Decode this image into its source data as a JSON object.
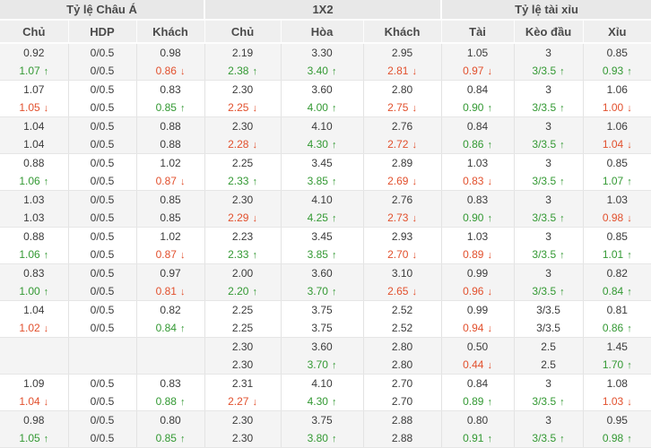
{
  "sections": [
    {
      "label": "Tỷ lệ Châu Á",
      "columns": [
        "Chủ",
        "HDP",
        "Khách"
      ]
    },
    {
      "label": "1X2",
      "columns": [
        "Chủ",
        "Hòa",
        "Khách"
      ]
    },
    {
      "label": "Tỷ lệ tài xỉu",
      "columns": [
        "Tài",
        "Kèo đầu",
        "Xỉu"
      ]
    }
  ],
  "colors": {
    "up": "#339933",
    "down": "#e2502d"
  },
  "trend_icons": {
    "up": "↑",
    "down": "↓"
  },
  "rows": [
    {
      "cells": [
        {
          "t": "0.92",
          "b": "1.07",
          "d": "up"
        },
        {
          "t": "0/0.5",
          "b": "0/0.5"
        },
        {
          "t": "0.98",
          "b": "0.86",
          "d": "down"
        },
        {
          "t": "2.19",
          "b": "2.38",
          "d": "up"
        },
        {
          "t": "3.30",
          "b": "3.40",
          "d": "up"
        },
        {
          "t": "2.95",
          "b": "2.81",
          "d": "down"
        },
        {
          "t": "1.05",
          "b": "0.97",
          "d": "down"
        },
        {
          "t": "3",
          "b": "3/3.5",
          "d": "up"
        },
        {
          "t": "0.85",
          "b": "0.93",
          "d": "up"
        }
      ]
    },
    {
      "cells": [
        {
          "t": "1.07",
          "b": "1.05",
          "d": "down"
        },
        {
          "t": "0/0.5",
          "b": "0/0.5"
        },
        {
          "t": "0.83",
          "b": "0.85",
          "d": "up"
        },
        {
          "t": "2.30",
          "b": "2.25",
          "d": "down"
        },
        {
          "t": "3.60",
          "b": "4.00",
          "d": "up"
        },
        {
          "t": "2.80",
          "b": "2.75",
          "d": "down"
        },
        {
          "t": "0.84",
          "b": "0.90",
          "d": "up"
        },
        {
          "t": "3",
          "b": "3/3.5",
          "d": "up"
        },
        {
          "t": "1.06",
          "b": "1.00",
          "d": "down"
        }
      ]
    },
    {
      "cells": [
        {
          "t": "1.04",
          "b": "1.04"
        },
        {
          "t": "0/0.5",
          "b": "0/0.5"
        },
        {
          "t": "0.88",
          "b": "0.88"
        },
        {
          "t": "2.30",
          "b": "2.28",
          "d": "down"
        },
        {
          "t": "4.10",
          "b": "4.30",
          "d": "up"
        },
        {
          "t": "2.76",
          "b": "2.72",
          "d": "down"
        },
        {
          "t": "0.84",
          "b": "0.86",
          "d": "up"
        },
        {
          "t": "3",
          "b": "3/3.5",
          "d": "up"
        },
        {
          "t": "1.06",
          "b": "1.04",
          "d": "down"
        }
      ]
    },
    {
      "cells": [
        {
          "t": "0.88",
          "b": "1.06",
          "d": "up"
        },
        {
          "t": "0/0.5",
          "b": "0/0.5"
        },
        {
          "t": "1.02",
          "b": "0.87",
          "d": "down"
        },
        {
          "t": "2.25",
          "b": "2.33",
          "d": "up"
        },
        {
          "t": "3.45",
          "b": "3.85",
          "d": "up"
        },
        {
          "t": "2.89",
          "b": "2.69",
          "d": "down"
        },
        {
          "t": "1.03",
          "b": "0.83",
          "d": "down"
        },
        {
          "t": "3",
          "b": "3/3.5",
          "d": "up"
        },
        {
          "t": "0.85",
          "b": "1.07",
          "d": "up"
        }
      ]
    },
    {
      "cells": [
        {
          "t": "1.03",
          "b": "1.03"
        },
        {
          "t": "0/0.5",
          "b": "0/0.5"
        },
        {
          "t": "0.85",
          "b": "0.85"
        },
        {
          "t": "2.30",
          "b": "2.29",
          "d": "down"
        },
        {
          "t": "4.10",
          "b": "4.25",
          "d": "up"
        },
        {
          "t": "2.76",
          "b": "2.73",
          "d": "down"
        },
        {
          "t": "0.83",
          "b": "0.90",
          "d": "up"
        },
        {
          "t": "3",
          "b": "3/3.5",
          "d": "up"
        },
        {
          "t": "1.03",
          "b": "0.98",
          "d": "down"
        }
      ]
    },
    {
      "cells": [
        {
          "t": "0.88",
          "b": "1.06",
          "d": "up"
        },
        {
          "t": "0/0.5",
          "b": "0/0.5"
        },
        {
          "t": "1.02",
          "b": "0.87",
          "d": "down"
        },
        {
          "t": "2.23",
          "b": "2.33",
          "d": "up"
        },
        {
          "t": "3.45",
          "b": "3.85",
          "d": "up"
        },
        {
          "t": "2.93",
          "b": "2.70",
          "d": "down"
        },
        {
          "t": "1.03",
          "b": "0.89",
          "d": "down"
        },
        {
          "t": "3",
          "b": "3/3.5",
          "d": "up"
        },
        {
          "t": "0.85",
          "b": "1.01",
          "d": "up"
        }
      ]
    },
    {
      "cells": [
        {
          "t": "0.83",
          "b": "1.00",
          "d": "up"
        },
        {
          "t": "0/0.5",
          "b": "0/0.5"
        },
        {
          "t": "0.97",
          "b": "0.81",
          "d": "down"
        },
        {
          "t": "2.00",
          "b": "2.20",
          "d": "up"
        },
        {
          "t": "3.60",
          "b": "3.70",
          "d": "up"
        },
        {
          "t": "3.10",
          "b": "2.65",
          "d": "down"
        },
        {
          "t": "0.99",
          "b": "0.96",
          "d": "down"
        },
        {
          "t": "3",
          "b": "3/3.5",
          "d": "up"
        },
        {
          "t": "0.82",
          "b": "0.84",
          "d": "up"
        }
      ]
    },
    {
      "cells": [
        {
          "t": "1.04",
          "b": "1.02",
          "d": "down"
        },
        {
          "t": "0/0.5",
          "b": "0/0.5"
        },
        {
          "t": "0.82",
          "b": "0.84",
          "d": "up"
        },
        {
          "t": "2.25",
          "b": "2.25"
        },
        {
          "t": "3.75",
          "b": "3.75"
        },
        {
          "t": "2.52",
          "b": "2.52"
        },
        {
          "t": "0.99",
          "b": "0.94",
          "d": "down"
        },
        {
          "t": "3/3.5",
          "b": "3/3.5"
        },
        {
          "t": "0.81",
          "b": "0.86",
          "d": "up"
        }
      ]
    },
    {
      "cells": [
        {
          "t": "",
          "b": ""
        },
        {
          "t": "",
          "b": ""
        },
        {
          "t": "",
          "b": ""
        },
        {
          "t": "2.30",
          "b": "2.30"
        },
        {
          "t": "3.60",
          "b": "3.70",
          "d": "up"
        },
        {
          "t": "2.80",
          "b": "2.80"
        },
        {
          "t": "0.50",
          "b": "0.44",
          "d": "down"
        },
        {
          "t": "2.5",
          "b": "2.5"
        },
        {
          "t": "1.45",
          "b": "1.70",
          "d": "up"
        }
      ]
    },
    {
      "cells": [
        {
          "t": "1.09",
          "b": "1.04",
          "d": "down"
        },
        {
          "t": "0/0.5",
          "b": "0/0.5"
        },
        {
          "t": "0.83",
          "b": "0.88",
          "d": "up"
        },
        {
          "t": "2.31",
          "b": "2.27",
          "d": "down"
        },
        {
          "t": "4.10",
          "b": "4.30",
          "d": "up"
        },
        {
          "t": "2.70",
          "b": "2.70"
        },
        {
          "t": "0.84",
          "b": "0.89",
          "d": "up"
        },
        {
          "t": "3",
          "b": "3/3.5",
          "d": "up"
        },
        {
          "t": "1.08",
          "b": "1.03",
          "d": "down"
        }
      ]
    },
    {
      "cells": [
        {
          "t": "0.98",
          "b": "1.05",
          "d": "up"
        },
        {
          "t": "0/0.5",
          "b": "0/0.5"
        },
        {
          "t": "0.80",
          "b": "0.85",
          "d": "up"
        },
        {
          "t": "2.30",
          "b": "2.30"
        },
        {
          "t": "3.75",
          "b": "3.80",
          "d": "up"
        },
        {
          "t": "2.88",
          "b": "2.88"
        },
        {
          "t": "0.80",
          "b": "0.91",
          "d": "up"
        },
        {
          "t": "3",
          "b": "3/3.5",
          "d": "up"
        },
        {
          "t": "0.95",
          "b": "0.98",
          "d": "up"
        }
      ]
    }
  ]
}
